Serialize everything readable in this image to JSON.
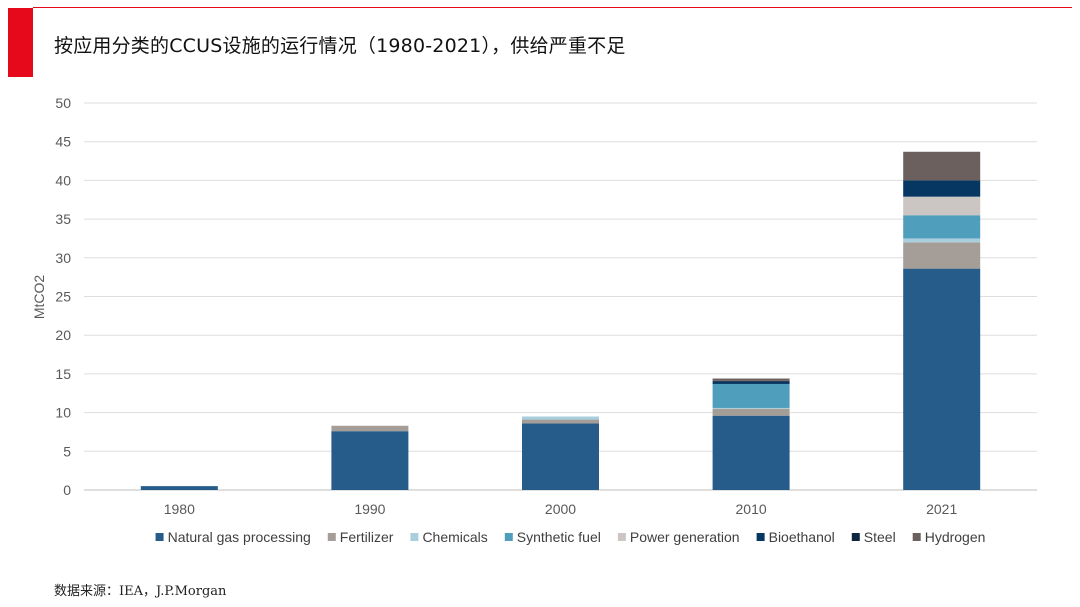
{
  "header": {
    "title": "按应用分类的CCUS设施的运行情况（1980-2021），供给严重不足",
    "accent_color": "#e6081b"
  },
  "source": "数据来源：IEA，J.P.Morgan",
  "chart_data": {
    "type": "bar",
    "stacked": true,
    "title": "按应用分类的CCUS设施的运行情况（1980-2021），供给严重不足",
    "xlabel": "",
    "ylabel": "MtCO2",
    "ylim": [
      0,
      50
    ],
    "yticks": [
      0,
      5,
      10,
      15,
      20,
      25,
      30,
      35,
      40,
      45,
      50
    ],
    "grid": true,
    "legend_position": "bottom",
    "categories": [
      "1980",
      "1990",
      "2000",
      "2010",
      "2021"
    ],
    "series": [
      {
        "name": "Natural gas processing",
        "color": "#255c8a",
        "values": [
          0.5,
          7.6,
          8.6,
          9.6,
          28.6
        ]
      },
      {
        "name": "Fertilizer",
        "color": "#a59d98",
        "values": [
          0,
          0.7,
          0.5,
          0.9,
          3.4
        ]
      },
      {
        "name": "Chemicals",
        "color": "#a9cfdf",
        "values": [
          0,
          0,
          0.4,
          0.1,
          0.5
        ]
      },
      {
        "name": "Synthetic fuel",
        "color": "#4f9ebb",
        "values": [
          0,
          0,
          0,
          3.1,
          3.0
        ]
      },
      {
        "name": "Power generation",
        "color": "#cbc6c3",
        "values": [
          0,
          0,
          0,
          0,
          2.4
        ]
      },
      {
        "name": "Bioethanol",
        "color": "#063662",
        "values": [
          0,
          0,
          0,
          0.3,
          2.1
        ]
      },
      {
        "name": "Steel",
        "color": "#0c2640",
        "values": [
          0,
          0,
          0,
          0.1,
          0
        ]
      },
      {
        "name": "Hydrogen",
        "color": "#6b605d",
        "values": [
          0,
          0,
          0,
          0.3,
          3.7
        ]
      }
    ]
  }
}
